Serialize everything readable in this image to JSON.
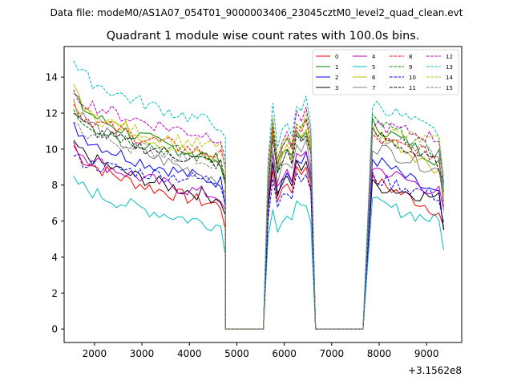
{
  "header": {
    "data_file": "Data file: modeM0/AS1A07_054T01_9000003406_23045cztM0_level2_quad_clean.evt"
  },
  "chart_data": {
    "type": "line",
    "title": "Quadrant 1 module wise count rates with 100.0s bins.",
    "xlabel": "",
    "ylabel": "",
    "x_offset_label": "+3.1562e8",
    "xlim": [
      1360,
      9740
    ],
    "ylim": [
      -0.75,
      15.7
    ],
    "x_ticks": [
      2000,
      3000,
      4000,
      5000,
      6000,
      7000,
      8000,
      9000
    ],
    "x_tick_labels": [
      "2000",
      "3000",
      "4000",
      "5000",
      "6000",
      "7000",
      "8000",
      "9000"
    ],
    "y_ticks": [
      0,
      2,
      4,
      6,
      8,
      10,
      12,
      14
    ],
    "y_tick_labels": [
      "0",
      "2",
      "4",
      "6",
      "8",
      "10",
      "12",
      "14"
    ],
    "legend_location": "top-right",
    "segments": [
      {
        "x_start": 1560,
        "x_end": 4760,
        "step": 100
      },
      {
        "x_start": 5660,
        "x_end": 6560,
        "step": 100
      },
      {
        "x_start": 7860,
        "x_end": 9360,
        "step": 100
      }
    ],
    "gap_x": [
      4860,
      4960,
      5060,
      5160,
      5260,
      5360,
      5460,
      5560,
      6660,
      6760,
      6860,
      6960,
      7060,
      7160,
      7260,
      7360,
      7460,
      7560,
      7660
    ],
    "edge_points": [
      {
        "x": 4760,
        "y": 0
      },
      {
        "x": 5560,
        "y": 0
      },
      {
        "x": 6660,
        "y": 0
      },
      {
        "x": 7660,
        "y": 0
      }
    ],
    "series": [
      {
        "name": "0",
        "color": "#ff0000",
        "dash": false,
        "s1_start": 10.2,
        "s1_end": 6.8,
        "s2_level": 8.4,
        "s3_start": 8.3,
        "s3_end": 6.4,
        "end_value": 5.7
      },
      {
        "name": "1",
        "color": "#008000",
        "dash": false,
        "s1_start": 13.1,
        "s1_end": 9.3,
        "s2_level": 10.3,
        "s3_start": 11.4,
        "s3_end": 9.2,
        "end_value": 7.6
      },
      {
        "name": "2",
        "color": "#0000ff",
        "dash": false,
        "s1_start": 11.5,
        "s1_end": 8.1,
        "s2_level": 8.9,
        "s3_start": 9.5,
        "s3_end": 7.2,
        "end_value": 5.5
      },
      {
        "name": "3",
        "color": "#000000",
        "dash": false,
        "s1_start": 10.5,
        "s1_end": 7.2,
        "s2_level": 8.7,
        "s3_start": 8.0,
        "s3_end": 7.2,
        "end_value": 5.5
      },
      {
        "name": "4",
        "color": "#bf00bf",
        "dash": false,
        "s1_start": 10.4,
        "s1_end": 7.3,
        "s2_level": 9.1,
        "s3_start": 9.0,
        "s3_end": 7.5,
        "end_value": 6.6
      },
      {
        "name": "5",
        "color": "#00bfbf",
        "dash": false,
        "s1_start": 8.5,
        "s1_end": 5.7,
        "s2_level": 6.5,
        "s3_start": 7.0,
        "s3_end": 5.9,
        "end_value": 4.4
      },
      {
        "name": "6",
        "color": "#bfbf00",
        "dash": false,
        "s1_start": 13.6,
        "s1_end": 9.2,
        "s2_level": 10.4,
        "s3_start": 11.1,
        "s3_end": 8.7,
        "end_value": 7.4
      },
      {
        "name": "7",
        "color": "#808080",
        "dash": false,
        "s1_start": 12.8,
        "s1_end": 8.2,
        "s2_level": 9.6,
        "s3_start": 10.2,
        "s3_end": 8.7,
        "end_value": 7.1
      },
      {
        "name": "8",
        "color": "#ff0000",
        "dash": true,
        "s1_start": 12.5,
        "s1_end": 9.6,
        "s2_level": 10.7,
        "s3_start": 10.6,
        "s3_end": 9.5,
        "end_value": 6.8
      },
      {
        "name": "9",
        "color": "#008000",
        "dash": true,
        "s1_start": 12.2,
        "s1_end": 9.3,
        "s2_level": 10.8,
        "s3_start": 11.6,
        "s3_end": 9.6,
        "end_value": 8.1
      },
      {
        "name": "10",
        "color": "#0000ff",
        "dash": true,
        "s1_start": 9.6,
        "s1_end": 8.2,
        "s2_level": 8.0,
        "s3_start": 8.4,
        "s3_end": 7.3,
        "end_value": 5.9
      },
      {
        "name": "11",
        "color": "#000000",
        "dash": true,
        "s1_start": 12.0,
        "s1_end": 9.1,
        "s2_level": 10.1,
        "s3_start": 10.9,
        "s3_end": 9.0,
        "end_value": 8.3
      },
      {
        "name": "12",
        "color": "#bf00bf",
        "dash": true,
        "s1_start": 13.3,
        "s1_end": 10.6,
        "s2_level": 11.2,
        "s3_start": 11.4,
        "s3_end": 10.5,
        "end_value": 8.1
      },
      {
        "name": "13",
        "color": "#00bfbf",
        "dash": true,
        "s1_start": 14.9,
        "s1_end": 11.3,
        "s2_level": 11.8,
        "s3_start": 12.6,
        "s3_end": 10.7,
        "end_value": 7.8
      },
      {
        "name": "14",
        "color": "#bfbf00",
        "dash": true,
        "s1_start": 12.7,
        "s1_end": 10.0,
        "s2_level": 11.0,
        "s3_start": 11.1,
        "s3_end": 10.3,
        "end_value": 8.5
      },
      {
        "name": "15",
        "color": "#808080",
        "dash": true,
        "s1_start": 11.5,
        "s1_end": 9.2,
        "s2_level": 10.2,
        "s3_start": 10.7,
        "s3_end": 9.7,
        "end_value": 6.5
      }
    ]
  }
}
